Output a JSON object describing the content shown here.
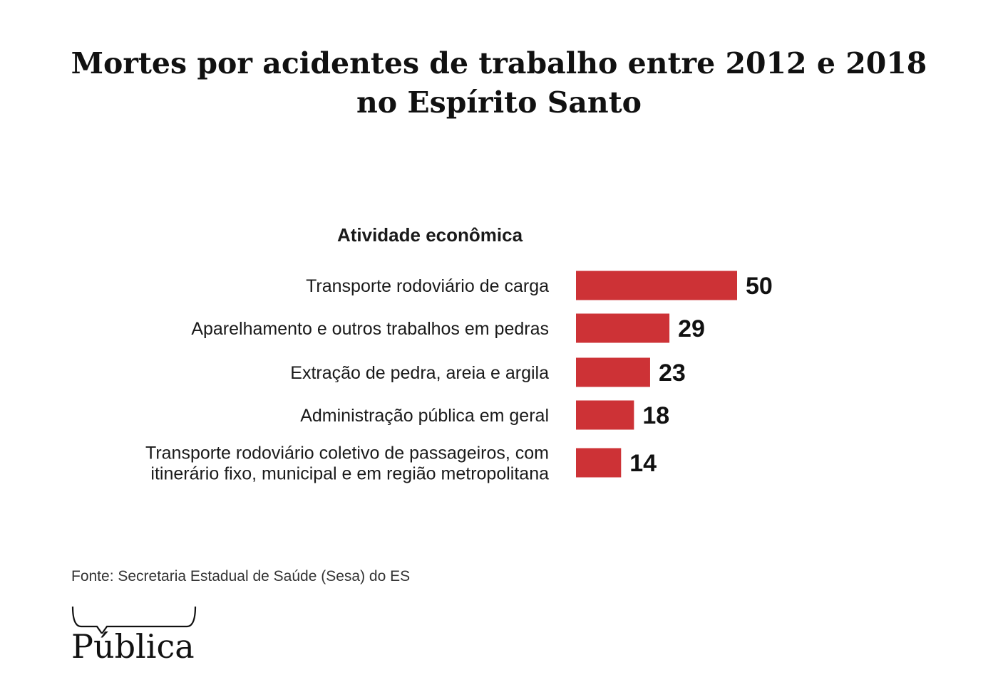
{
  "title_line1": "Mortes por acidentes de trabalho entre 2012 e 2018",
  "title_line2": "no Espírito Santo",
  "source": "Fonte: Secretaria Estadual de Saúde (Sesa) do ES",
  "logo_text": "Pública",
  "colors": {
    "bar": "#cd3236",
    "text": "#1a1a1a"
  },
  "chart_data": {
    "type": "bar",
    "orientation": "horizontal",
    "title": "Mortes por acidentes de trabalho entre 2012 e 2018 no Espírito Santo",
    "ylabel": "Atividade econômica",
    "categories": [
      [
        "Transporte rodoviário de carga"
      ],
      [
        "Aparelhamento e outros trabalhos em pedras"
      ],
      [
        "Extração de pedra, areia e argila"
      ],
      [
        "Administração pública em geral"
      ],
      [
        "Transporte rodoviário coletivo de passageiros, com",
        "itinerário fixo, municipal e em região metropolitana"
      ]
    ],
    "values": [
      50,
      29,
      23,
      18,
      14
    ],
    "xlim": [
      0,
      50
    ],
    "grid": false,
    "legend": "none"
  }
}
